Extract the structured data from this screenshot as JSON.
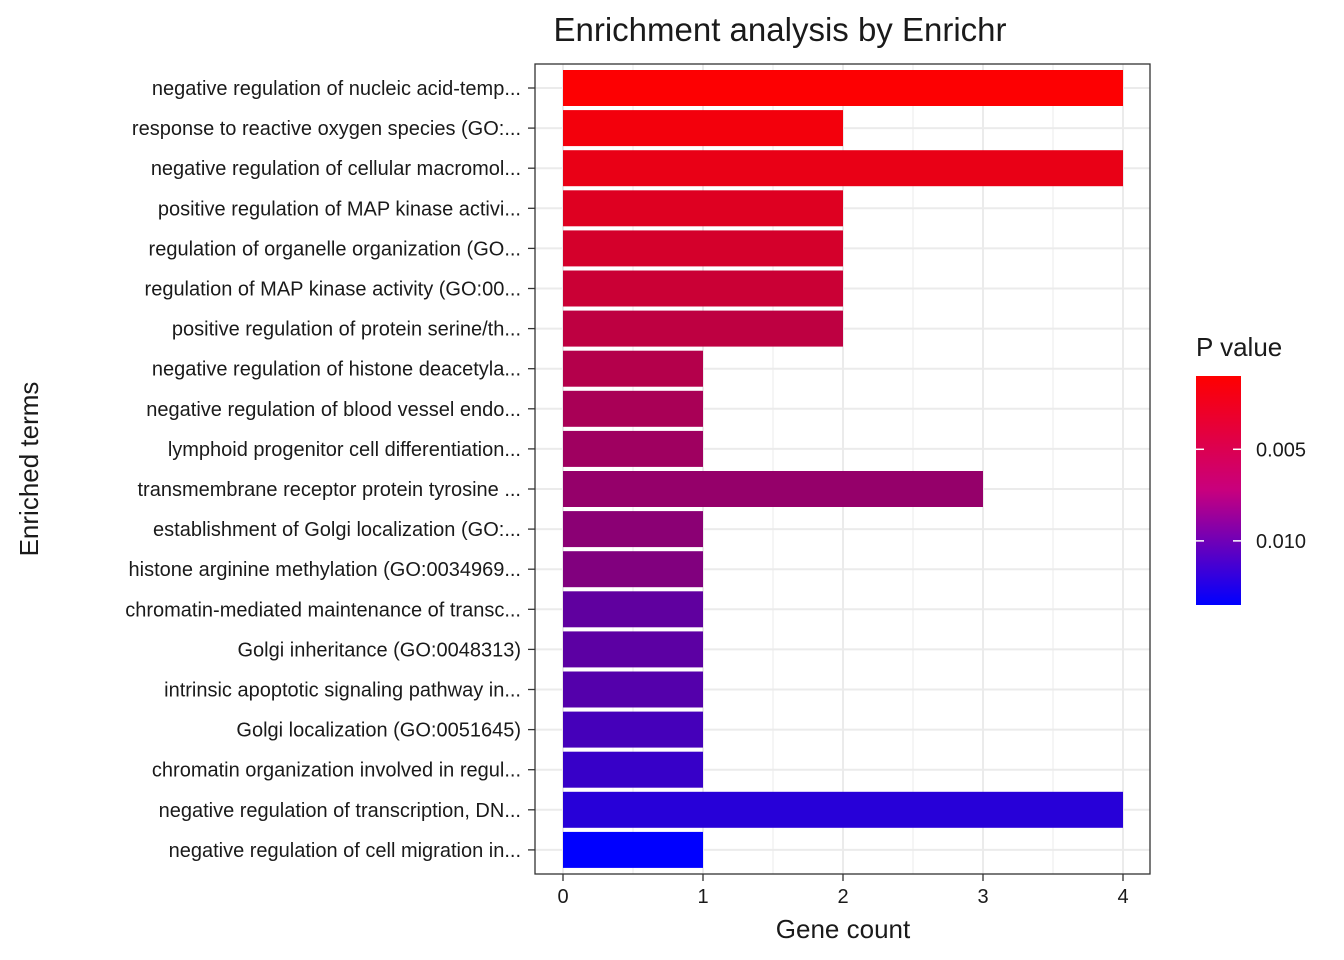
{
  "chart_data": {
    "type": "bar",
    "orientation": "horizontal",
    "title": "Enrichment analysis by Enrichr",
    "xlabel": "Gene count",
    "ylabel": "Enriched terms",
    "xlim": [
      0,
      4
    ],
    "x_ticks": [
      "0",
      "1",
      "2",
      "3",
      "4"
    ],
    "grid": true,
    "categories": [
      "negative regulation of nucleic acid-temp...",
      "response to reactive oxygen species (GO:...",
      "negative regulation of cellular macromol...",
      "positive regulation of MAP kinase activi...",
      "regulation of organelle organization (GO...",
      "regulation of MAP kinase activity (GO:00...",
      "positive regulation of protein serine/th...",
      "negative regulation of histone deacetyla...",
      "negative regulation of blood vessel endo...",
      "lymphoid progenitor cell differentiation...",
      "transmembrane receptor protein tyrosine ...",
      "establishment of Golgi localization (GO:...",
      "histone arginine methylation (GO:0034969...",
      "chromatin-mediated maintenance of transc...",
      "Golgi inheritance (GO:0048313)",
      "intrinsic apoptotic signaling pathway in...",
      "Golgi localization (GO:0051645)",
      "chromatin organization involved in regul...",
      "negative regulation of transcription, DN...",
      "negative regulation of cell migration in..."
    ],
    "values": [
      4,
      2,
      4,
      2,
      2,
      2,
      2,
      1,
      1,
      1,
      3,
      1,
      1,
      1,
      1,
      1,
      1,
      1,
      4,
      1
    ],
    "p_values": [
      0.0011,
      0.0016,
      0.0021,
      0.0026,
      0.0031,
      0.0036,
      0.0042,
      0.0047,
      0.0052,
      0.0057,
      0.0062,
      0.0067,
      0.0072,
      0.0088,
      0.009,
      0.0094,
      0.0101,
      0.0108,
      0.0116,
      0.0135
    ],
    "legend": {
      "title": "P value",
      "placement": "right",
      "range": [
        0.001,
        0.0135
      ],
      "ticks": [
        {
          "value": 0.005,
          "label": "0.005"
        },
        {
          "value": 0.01,
          "label": "0.010"
        }
      ],
      "color_low_p": "#FF0000",
      "color_high_p": "#0000FF"
    }
  }
}
